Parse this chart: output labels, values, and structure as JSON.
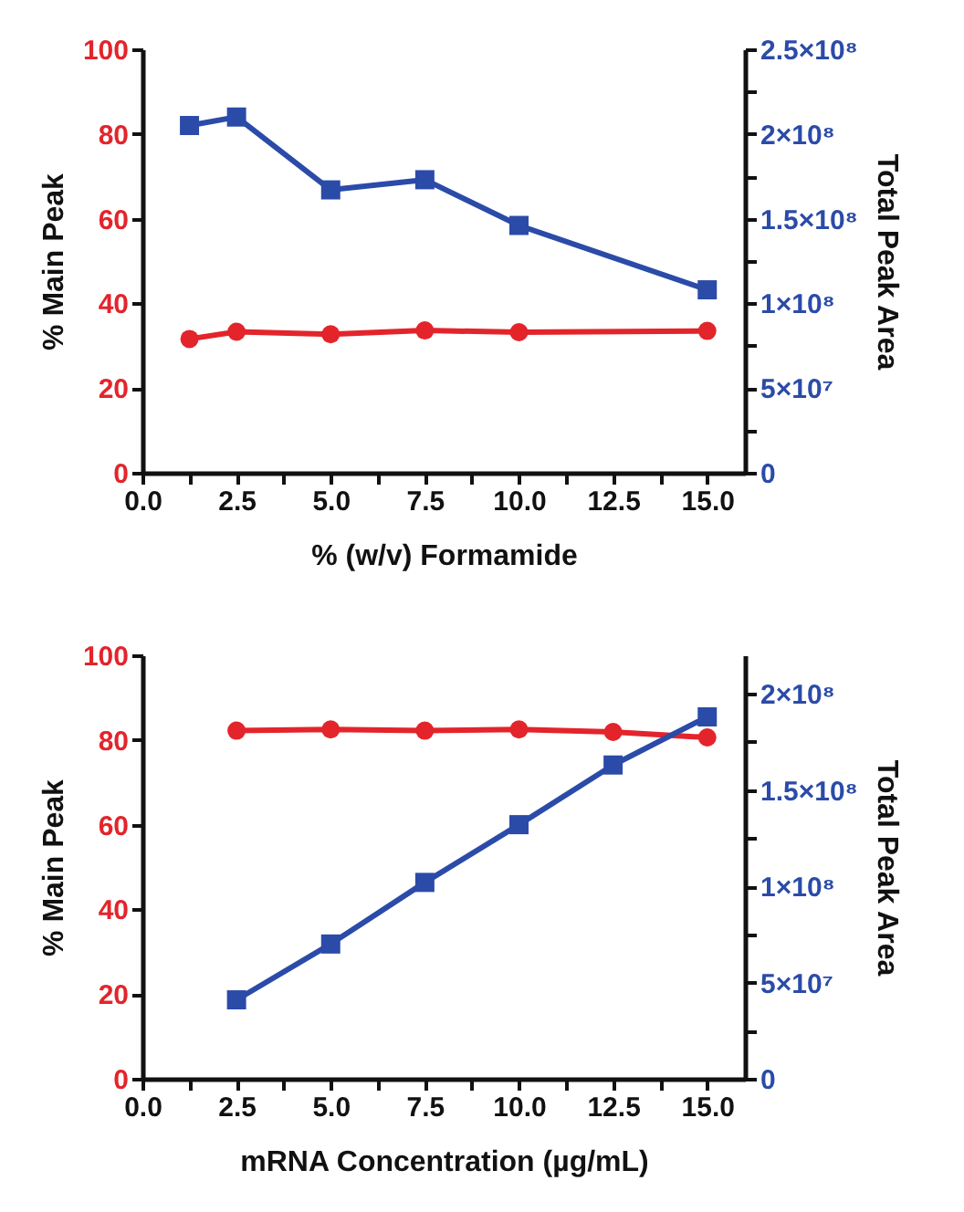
{
  "chart_data": [
    {
      "type": "line",
      "xlabel": "% (w/v) Formamide",
      "ylabel": "% Main Peak",
      "y2label": "Total Peak Area",
      "grid": false,
      "xlim": [
        0,
        16
      ],
      "ylim": [
        0,
        100
      ],
      "y2lim": [
        0,
        250000000
      ],
      "xticks": [
        {
          "value": 0,
          "label": "0.0"
        },
        {
          "value": 1.25,
          "label": null
        },
        {
          "value": 2.5,
          "label": "2.5"
        },
        {
          "value": 3.75,
          "label": null
        },
        {
          "value": 5,
          "label": "5.0"
        },
        {
          "value": 6.25,
          "label": null
        },
        {
          "value": 7.5,
          "label": "7.5"
        },
        {
          "value": 8.75,
          "label": null
        },
        {
          "value": 10,
          "label": "10.0"
        },
        {
          "value": 11.25,
          "label": null
        },
        {
          "value": 12.5,
          "label": "12.5"
        },
        {
          "value": 13.75,
          "label": null
        },
        {
          "value": 15,
          "label": "15.0"
        }
      ],
      "yticks": [
        0,
        20,
        40,
        60,
        80,
        100
      ],
      "y2ticks": [
        {
          "value": 0,
          "label": "0"
        },
        {
          "value": 25000000,
          "label": null
        },
        {
          "value": 50000000,
          "label": "5×10⁷"
        },
        {
          "value": 75000000,
          "label": null
        },
        {
          "value": 100000000,
          "label": "1×10⁸"
        },
        {
          "value": 125000000,
          "label": null
        },
        {
          "value": 150000000,
          "label": "1.5×10⁸"
        },
        {
          "value": 175000000,
          "label": null
        },
        {
          "value": 200000000,
          "label": "2×10⁸"
        },
        {
          "value": 225000000,
          "label": null
        },
        {
          "value": 250000000,
          "label": "2.5×10⁸"
        }
      ],
      "series": [
        {
          "type": "line",
          "axis": "y",
          "color": "#e3242b",
          "marker": "circle",
          "x": [
            1.25,
            2.5,
            5,
            7.5,
            10,
            15
          ],
          "values": [
            31.6,
            33.3,
            32.7,
            33.6,
            33.2,
            33.5
          ]
        },
        {
          "type": "line",
          "axis": "y2",
          "color": "#2b4ba8",
          "marker": "square",
          "x": [
            1.25,
            2.5,
            5,
            7.5,
            10,
            15
          ],
          "values": [
            205000000,
            210000000,
            167000000,
            173000000,
            146000000,
            108000000
          ]
        }
      ]
    },
    {
      "type": "line",
      "xlabel": "mRNA Concentration (µg/mL)",
      "ylabel": "% Main Peak",
      "y2label": "Total Peak Area",
      "grid": false,
      "xlim": [
        0,
        16
      ],
      "ylim": [
        0,
        100
      ],
      "y2lim": [
        0,
        220000000
      ],
      "xticks": [
        {
          "value": 0,
          "label": "0.0"
        },
        {
          "value": 1.25,
          "label": null
        },
        {
          "value": 2.5,
          "label": "2.5"
        },
        {
          "value": 3.75,
          "label": null
        },
        {
          "value": 5,
          "label": "5.0"
        },
        {
          "value": 6.25,
          "label": null
        },
        {
          "value": 7.5,
          "label": "7.5"
        },
        {
          "value": 8.75,
          "label": null
        },
        {
          "value": 10,
          "label": "10.0"
        },
        {
          "value": 11.25,
          "label": null
        },
        {
          "value": 12.5,
          "label": "12.5"
        },
        {
          "value": 13.75,
          "label": null
        },
        {
          "value": 15,
          "label": "15.0"
        }
      ],
      "yticks": [
        0,
        20,
        40,
        60,
        80,
        100
      ],
      "y2ticks": [
        {
          "value": 0,
          "label": "0"
        },
        {
          "value": 25000000,
          "label": null
        },
        {
          "value": 50000000,
          "label": "5×10⁷"
        },
        {
          "value": 75000000,
          "label": null
        },
        {
          "value": 100000000,
          "label": "1×10⁸"
        },
        {
          "value": 125000000,
          "label": null
        },
        {
          "value": 150000000,
          "label": "1.5×10⁸"
        },
        {
          "value": 175000000,
          "label": null
        },
        {
          "value": 200000000,
          "label": "2×10⁸"
        }
      ],
      "series": [
        {
          "type": "line",
          "axis": "y",
          "color": "#e3242b",
          "marker": "circle",
          "x": [
            2.5,
            5,
            7.5,
            10,
            12.5,
            15
          ],
          "values": [
            82.2,
            82.5,
            82.2,
            82.5,
            81.9,
            80.6
          ]
        },
        {
          "type": "line",
          "axis": "y2",
          "color": "#2b4ba8",
          "marker": "square",
          "x": [
            2.5,
            5,
            7.5,
            10,
            12.5,
            15
          ],
          "values": [
            41000000,
            70000000,
            102000000,
            132000000,
            163000000,
            188000000
          ]
        }
      ]
    }
  ]
}
